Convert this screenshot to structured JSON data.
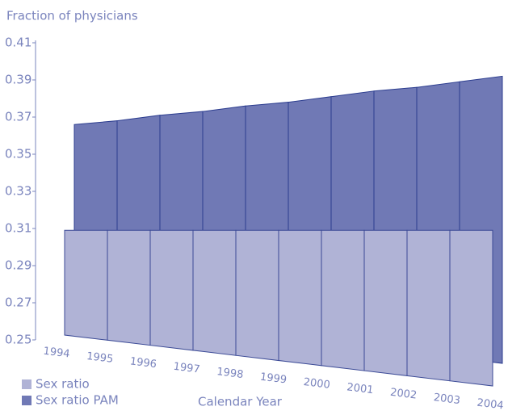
{
  "chart_data": {
    "type": "strip3d",
    "y_label": "Fraction of physicians",
    "x_label": "Calendar Year",
    "categories": [
      "1994",
      "1995",
      "1996",
      "1997",
      "1998",
      "1999",
      "2000",
      "2001",
      "2002",
      "2003",
      "2004"
    ],
    "series": [
      {
        "name": "Sex ratio",
        "color": "#b0b3d6",
        "values": [
          0.309,
          0.309,
          0.309,
          0.309,
          0.309,
          0.309,
          0.309,
          0.309,
          0.309,
          0.309,
          0.309
        ]
      },
      {
        "name": "Sex ratio PAM",
        "color": "#7079b5",
        "values": [
          0.366,
          0.368,
          0.371,
          0.373,
          0.376,
          0.378,
          0.381,
          0.384,
          0.386,
          0.389,
          0.392
        ]
      }
    ],
    "ylim": [
      0.25,
      0.41
    ],
    "yticks": [
      0.25,
      0.27,
      0.29,
      0.31,
      0.33,
      0.35,
      0.37,
      0.39,
      0.41
    ]
  }
}
